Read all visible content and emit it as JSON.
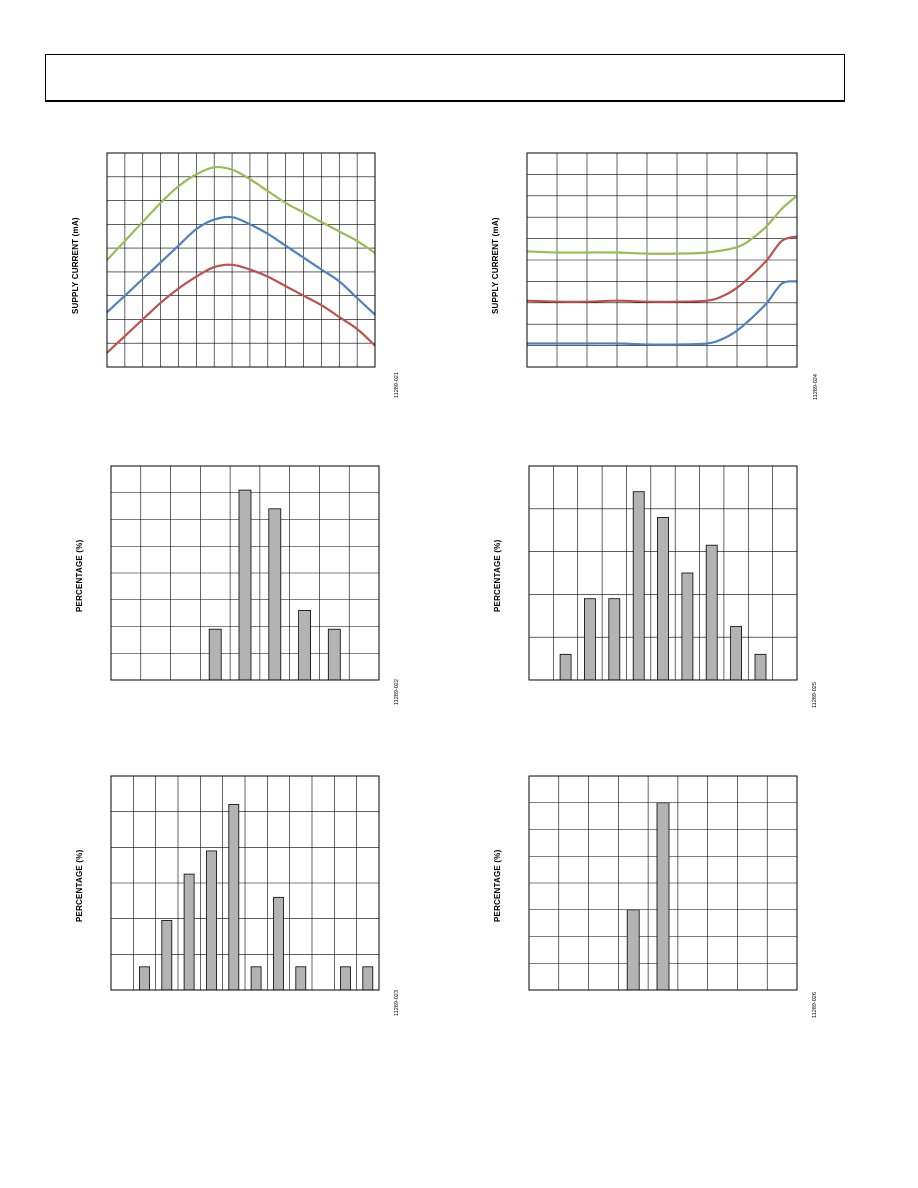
{
  "page": {
    "colors": {
      "grid": "#000000",
      "bar_fill": "#b3b3b3",
      "green": "#9bbb59",
      "blue": "#4f81bd",
      "red": "#c0504d"
    }
  },
  "chart_data": [
    {
      "id": "fig21",
      "type": "line",
      "title": "",
      "xlabel": "",
      "ylabel": "SUPPLY CURRENT (mA)",
      "figure_id": "11289-021",
      "grid": true,
      "grid_cols": 15,
      "grid_rows": 9,
      "xlim": [
        0,
        15
      ],
      "ylim": [
        0,
        9
      ],
      "legend": "none",
      "series": [
        {
          "color": "#9bbb59",
          "x": [
            0,
            1,
            2,
            3,
            4,
            5,
            6,
            7,
            8,
            9,
            10,
            11,
            12,
            13,
            14,
            15
          ],
          "y": [
            4.5,
            5.3,
            6.1,
            6.9,
            7.6,
            8.1,
            8.4,
            8.3,
            7.9,
            7.4,
            6.9,
            6.5,
            6.1,
            5.7,
            5.3,
            4.8
          ]
        },
        {
          "color": "#4f81bd",
          "x": [
            0,
            1,
            2,
            3,
            4,
            5,
            6,
            7,
            8,
            9,
            10,
            11,
            12,
            13,
            14,
            15
          ],
          "y": [
            2.3,
            3.0,
            3.7,
            4.4,
            5.1,
            5.8,
            6.2,
            6.3,
            6.0,
            5.6,
            5.1,
            4.6,
            4.1,
            3.6,
            2.9,
            2.2
          ]
        },
        {
          "color": "#c0504d",
          "x": [
            0,
            1,
            2,
            3,
            4,
            5,
            6,
            7,
            8,
            9,
            10,
            11,
            12,
            13,
            14,
            15
          ],
          "y": [
            0.6,
            1.3,
            2.0,
            2.7,
            3.3,
            3.8,
            4.2,
            4.3,
            4.1,
            3.8,
            3.4,
            3.0,
            2.6,
            2.1,
            1.6,
            0.9
          ]
        }
      ]
    },
    {
      "id": "fig24",
      "type": "line",
      "title": "",
      "xlabel": "",
      "ylabel": "SUPPLY CURRENT (mA)",
      "figure_id": "11289-024",
      "grid": true,
      "grid_cols": 9,
      "grid_rows": 10,
      "xlim": [
        0,
        9
      ],
      "ylim": [
        0,
        10
      ],
      "legend": "none",
      "series": [
        {
          "color": "#9bbb59",
          "x": [
            0,
            1,
            2,
            3,
            4,
            5,
            6,
            7,
            7.5,
            8,
            8.5,
            9
          ],
          "y": [
            5.4,
            5.35,
            5.35,
            5.35,
            5.3,
            5.3,
            5.35,
            5.6,
            6.0,
            6.6,
            7.4,
            8.0
          ]
        },
        {
          "color": "#c0504d",
          "x": [
            0,
            1,
            2,
            3,
            4,
            5,
            6,
            6.5,
            7,
            7.5,
            8,
            8.5,
            9
          ],
          "y": [
            3.1,
            3.05,
            3.05,
            3.1,
            3.05,
            3.05,
            3.1,
            3.3,
            3.7,
            4.3,
            5.0,
            5.9,
            6.1
          ]
        },
        {
          "color": "#4f81bd",
          "x": [
            0,
            1,
            2,
            3,
            4,
            5,
            6,
            6.5,
            7,
            7.5,
            8,
            8.5,
            9
          ],
          "y": [
            1.1,
            1.1,
            1.1,
            1.1,
            1.05,
            1.05,
            1.1,
            1.3,
            1.7,
            2.3,
            3.0,
            3.9,
            4.0
          ]
        }
      ]
    },
    {
      "id": "fig22",
      "type": "bar",
      "title": "",
      "xlabel": "",
      "ylabel": "PERCENTAGE (%)",
      "figure_id": "11289-022",
      "grid": true,
      "grid_cols": 9,
      "grid_rows": 8,
      "ylim": [
        0,
        8
      ],
      "legend": "none",
      "bar_positions": [
        3.5,
        4.5,
        5.5,
        6.5,
        7.5
      ],
      "values": [
        1.9,
        7.1,
        6.4,
        2.6,
        1.9
      ]
    },
    {
      "id": "fig25",
      "type": "bar",
      "title": "",
      "xlabel": "",
      "ylabel": "PERCENTAGE (%)",
      "figure_id": "11289-025",
      "grid": true,
      "grid_cols": 11,
      "grid_rows": 5,
      "ylim": [
        0,
        5
      ],
      "legend": "none",
      "bar_positions": [
        1.5,
        2.5,
        3.5,
        4.5,
        5.5,
        6.5,
        7.5,
        8.5,
        9.5
      ],
      "values": [
        0.6,
        1.9,
        1.9,
        4.4,
        3.8,
        2.5,
        3.15,
        1.25,
        0.6
      ]
    },
    {
      "id": "fig23",
      "type": "bar",
      "title": "",
      "xlabel": "",
      "ylabel": "PERCENTAGE (%)",
      "figure_id": "11289-023",
      "grid": true,
      "grid_cols": 12,
      "grid_rows": 6,
      "ylim": [
        0,
        6
      ],
      "legend": "none",
      "bar_positions": [
        1.5,
        2.5,
        3.5,
        4.5,
        5.5,
        6.5,
        7.5,
        8.5,
        10.5,
        11.5
      ],
      "values": [
        0.65,
        1.95,
        3.25,
        3.9,
        5.2,
        0.65,
        2.6,
        0.65,
        0.65,
        0.65
      ]
    },
    {
      "id": "fig26",
      "type": "bar",
      "title": "",
      "xlabel": "",
      "ylabel": "PERCENTAGE (%)",
      "figure_id": "11289-026",
      "grid": true,
      "grid_cols": 9,
      "grid_rows": 8,
      "ylim": [
        0,
        8
      ],
      "legend": "none",
      "bar_positions": [
        3.5,
        4.5
      ],
      "values": [
        3.0,
        7.0
      ]
    }
  ]
}
